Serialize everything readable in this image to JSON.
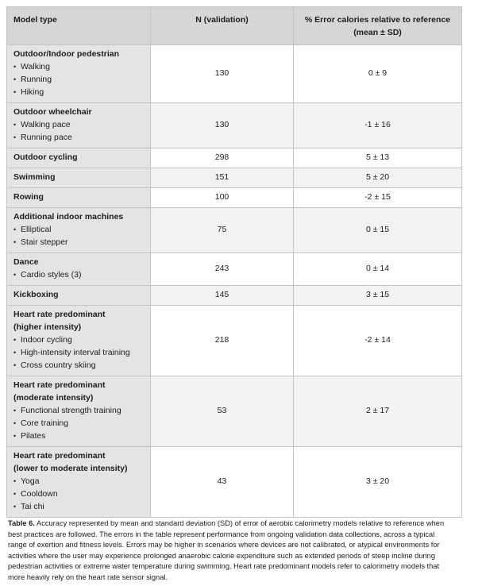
{
  "table": {
    "headers": [
      "Model type",
      "N (validation)",
      "% Error calories relative to reference (mean ± SD)"
    ],
    "rows": [
      {
        "title": [
          "Outdoor/Indoor pedestrian"
        ],
        "items": [
          "Walking",
          "Running",
          "Hiking"
        ],
        "n": "130",
        "error": "0 ± 9"
      },
      {
        "title": [
          "Outdoor wheelchair"
        ],
        "items": [
          "Walking pace",
          "Running pace"
        ],
        "n": "130",
        "error": "-1 ± 16"
      },
      {
        "title": [
          "Outdoor cycling"
        ],
        "items": [],
        "n": "298",
        "error": "5 ± 13"
      },
      {
        "title": [
          "Swimming"
        ],
        "items": [],
        "n": "151",
        "error": "5 ± 20"
      },
      {
        "title": [
          "Rowing"
        ],
        "items": [],
        "n": "100",
        "error": "-2 ± 15"
      },
      {
        "title": [
          "Additional indoor machines"
        ],
        "items": [
          "Elliptical",
          "Stair stepper"
        ],
        "n": "75",
        "error": "0 ± 15"
      },
      {
        "title": [
          "Dance"
        ],
        "items": [
          "Cardio styles (3)"
        ],
        "n": "243",
        "error": "0 ± 14"
      },
      {
        "title": [
          "Kickboxing"
        ],
        "items": [],
        "n": "145",
        "error": "3 ± 15"
      },
      {
        "title": [
          "Heart rate predominant",
          "(higher intensity)"
        ],
        "items": [
          "Indoor cycling",
          "High-intensity interval training",
          "Cross country skiing"
        ],
        "n": "218",
        "error": "-2 ± 14"
      },
      {
        "title": [
          "Heart rate predominant",
          "(moderate intensity)"
        ],
        "items": [
          "Functional strength training",
          "Core training",
          "Pilates"
        ],
        "n": "53",
        "error": "2 ± 17"
      },
      {
        "title": [
          "Heart rate predominant",
          "(lower to moderate intensity)"
        ],
        "items": [
          "Yoga",
          "Cooldown",
          "Tai chi"
        ],
        "n": "43",
        "error": "3 ± 20"
      }
    ]
  },
  "caption": {
    "label": "Table 6.",
    "text": "Accuracy represented by mean and standard deviation (SD) of error of aerobic calorimetry models relative to reference when best practices are followed. The errors in the table represent performance from ongoing validation data collections, across a typical range of exertion and fitness levels. Errors may be higher in scenarios where devices are not calibrated, or atypical environments for activities where the user may experience prolonged anaerobic calorie expenditure such as extended periods of steep incline during pedestrian activities or extreme water temperature during swimming. Heart rate predominant models refer to calorimetry models that more heavily rely on the heart rate sensor signal."
  }
}
